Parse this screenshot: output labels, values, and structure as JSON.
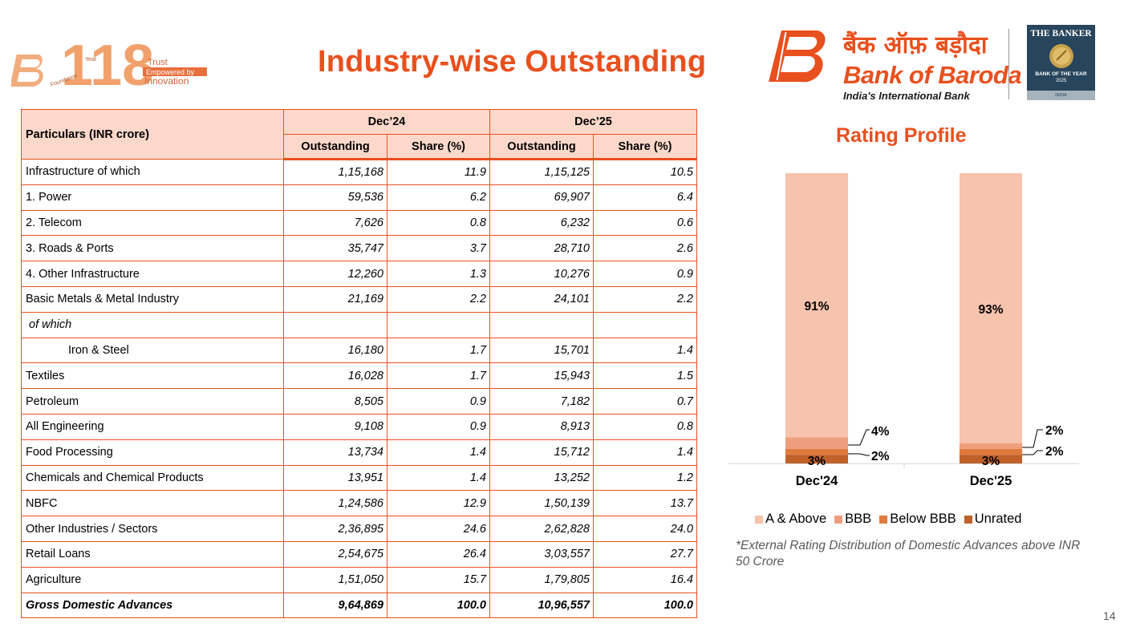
{
  "header": {
    "title": "Industry-wise Outstanding",
    "anniversary_logo": {
      "number": "118",
      "year_label": "Year",
      "foundation_label": "Foundation",
      "tag_trust": "Trust",
      "tag_empowered": "Empowered by",
      "tag_innovation": "Innovation"
    },
    "bank_name_hindi": "बैंक ऑफ़ बड़ौदा",
    "bank_name_english": "Bank of Baroda",
    "bank_tagline": "India's International Bank",
    "banker_award": {
      "title": "THE BANKER",
      "subtitle": "BANK OF THE YEAR",
      "year": "2025",
      "country": "INDIA"
    }
  },
  "table": {
    "header_particulars": "Particulars (INR crore)",
    "periods": [
      "Dec’24",
      "Dec’25"
    ],
    "subheaders": [
      "Outstanding",
      "Share (%)",
      "Outstanding",
      "Share (%)"
    ],
    "rows": [
      {
        "label": "Infrastructure of which",
        "dec24_outstanding": "1,15,168",
        "dec24_share": "11.9",
        "dec25_outstanding": "1,15,125",
        "dec25_share": "10.5"
      },
      {
        "label": "1. Power",
        "dec24_outstanding": "59,536",
        "dec24_share": "6.2",
        "dec25_outstanding": "69,907",
        "dec25_share": "6.4"
      },
      {
        "label": "2. Telecom",
        "dec24_outstanding": "7,626",
        "dec24_share": "0.8",
        "dec25_outstanding": "6,232",
        "dec25_share": "0.6"
      },
      {
        "label": "3. Roads & Ports",
        "dec24_outstanding": "35,747",
        "dec24_share": "3.7",
        "dec25_outstanding": "28,710",
        "dec25_share": "2.6"
      },
      {
        "label": "4. Other Infrastructure",
        "dec24_outstanding": "12,260",
        "dec24_share": "1.3",
        "dec25_outstanding": "10,276",
        "dec25_share": "0.9"
      },
      {
        "label": "Basic Metals & Metal Industry",
        "dec24_outstanding": "21,169",
        "dec24_share": "2.2",
        "dec25_outstanding": "24,101",
        "dec25_share": "2.2"
      },
      {
        "label": "of which",
        "dec24_outstanding": "",
        "dec24_share": "",
        "dec25_outstanding": "",
        "dec25_share": ""
      },
      {
        "label": "Iron & Steel",
        "dec24_outstanding": "16,180",
        "dec24_share": "1.7",
        "dec25_outstanding": "15,701",
        "dec25_share": "1.4"
      },
      {
        "label": "Textiles",
        "dec24_outstanding": "16,028",
        "dec24_share": "1.7",
        "dec25_outstanding": "15,943",
        "dec25_share": "1.5"
      },
      {
        "label": "Petroleum",
        "dec24_outstanding": "8,505",
        "dec24_share": "0.9",
        "dec25_outstanding": "7,182",
        "dec25_share": "0.7"
      },
      {
        "label": "All Engineering",
        "dec24_outstanding": "9,108",
        "dec24_share": "0.9",
        "dec25_outstanding": "8,913",
        "dec25_share": "0.8"
      },
      {
        "label": "Food Processing",
        "dec24_outstanding": "13,734",
        "dec24_share": "1.4",
        "dec25_outstanding": "15,712",
        "dec25_share": "1.4"
      },
      {
        "label": "Chemicals and Chemical Products",
        "dec24_outstanding": "13,951",
        "dec24_share": "1.4",
        "dec25_outstanding": "13,252",
        "dec25_share": "1.2"
      },
      {
        "label": "NBFC",
        "dec24_outstanding": "1,24,586",
        "dec24_share": "12.9",
        "dec25_outstanding": "1,50,139",
        "dec25_share": "13.7"
      },
      {
        "label": "Other Industries / Sectors",
        "dec24_outstanding": "2,36,895",
        "dec24_share": "24.6",
        "dec25_outstanding": "2,62,828",
        "dec25_share": "24.0"
      },
      {
        "label": "Retail Loans",
        "dec24_outstanding": "2,54,675",
        "dec24_share": "26.4",
        "dec25_outstanding": "3,03,557",
        "dec25_share": "27.7"
      },
      {
        "label": "Agriculture",
        "dec24_outstanding": "1,51,050",
        "dec24_share": "15.7",
        "dec25_outstanding": "1,79,805",
        "dec25_share": "16.4"
      },
      {
        "label": "Gross Domestic Advances",
        "dec24_outstanding": "9,64,869",
        "dec24_share": "100.0",
        "dec25_outstanding": "10,96,557",
        "dec25_share": "100.0"
      }
    ]
  },
  "rating_profile": {
    "title": "Rating Profile",
    "footnote": "*External Rating Distribution of Domestic Advances above INR 50 Crore"
  },
  "chart_data": {
    "type": "bar",
    "stacked": true,
    "title": "Rating Profile",
    "categories": [
      "Dec'24",
      "Dec'25"
    ],
    "series": [
      {
        "name": "Unrated",
        "values": [
          3,
          3
        ],
        "labels": [
          "3%",
          "3%"
        ],
        "color": "#c0612b"
      },
      {
        "name": "Below BBB",
        "values": [
          2,
          2
        ],
        "labels": [
          "2%",
          "2%"
        ],
        "color": "#e07a3e"
      },
      {
        "name": "BBB",
        "values": [
          4,
          2
        ],
        "labels": [
          "4%",
          "2%"
        ],
        "color": "#ee9e7c"
      },
      {
        "name": "A & Above",
        "values": [
          91,
          93
        ],
        "labels": [
          "91%",
          "93%"
        ],
        "color": "#f6c3ac"
      }
    ],
    "legend_order": [
      "A & Above",
      "BBB",
      "Below BBB",
      "Unrated"
    ],
    "ylim": [
      0,
      100
    ],
    "grid": false,
    "legend_position": "bottom"
  },
  "page_number": "14"
}
